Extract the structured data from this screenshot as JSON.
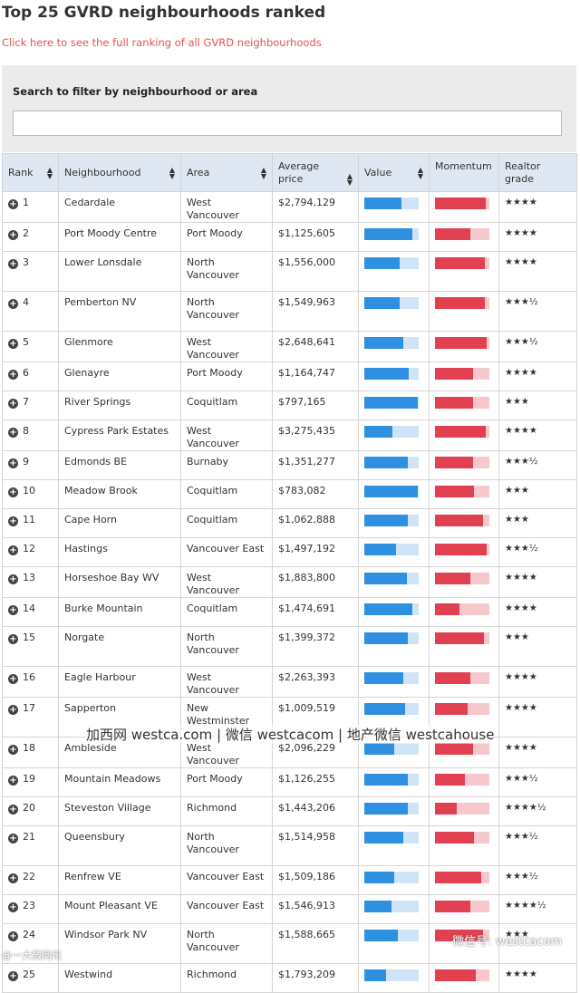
{
  "title": "Top 25 GVRD neighbourhoods ranked",
  "link_text": "Click here to see the full ranking of all GVRD neighbourhoods",
  "filter": {
    "label": "Search to filter by neighbourhood or area",
    "value": ""
  },
  "columns": [
    "Rank",
    "Neighbourhood",
    "Area",
    "Average price",
    "Value",
    "Momentum",
    "Realtor grade"
  ],
  "rows": [
    {
      "rank": "1",
      "name": "Cedardale",
      "area": "West Vancouver",
      "price": "$2,794,129",
      "value": 0.68,
      "momentum": 0.93,
      "grade": "★★★★"
    },
    {
      "rank": "2",
      "name": "Port Moody Centre",
      "area": "Port Moody",
      "price": "$1,125,605",
      "value": 0.88,
      "momentum": 0.65,
      "grade": "★★★★"
    },
    {
      "rank": "3",
      "name": "Lower Lonsdale",
      "area": "North Vancouver",
      "price": "$1,556,000",
      "value": 0.65,
      "momentum": 0.92,
      "grade": "★★★★"
    },
    {
      "rank": "4",
      "name": "Pemberton NV",
      "area": "North Vancouver",
      "price": "$1,549,963",
      "value": 0.65,
      "momentum": 0.92,
      "grade": "★★★½"
    },
    {
      "rank": "5",
      "name": "Glenmore",
      "area": "West Vancouver",
      "price": "$2,648,641",
      "value": 0.72,
      "momentum": 0.95,
      "grade": "★★★½"
    },
    {
      "rank": "6",
      "name": "Glenayre",
      "area": "Port Moody",
      "price": "$1,164,747",
      "value": 0.82,
      "momentum": 0.7,
      "grade": "★★★★"
    },
    {
      "rank": "7",
      "name": "River Springs",
      "area": "Coquitlam",
      "price": "$797,165",
      "value": 0.98,
      "momentum": 0.7,
      "grade": "★★★"
    },
    {
      "rank": "8",
      "name": "Cypress Park Estates",
      "area": "West Vancouver",
      "price": "$3,275,435",
      "value": 0.52,
      "momentum": 0.93,
      "grade": "★★★★"
    },
    {
      "rank": "9",
      "name": "Edmonds BE",
      "area": "Burnaby",
      "price": "$1,351,277",
      "value": 0.8,
      "momentum": 0.7,
      "grade": "★★★½"
    },
    {
      "rank": "10",
      "name": "Meadow Brook",
      "area": "Coquitlam",
      "price": "$783,082",
      "value": 0.98,
      "momentum": 0.72,
      "grade": "★★★"
    },
    {
      "rank": "11",
      "name": "Cape Horn",
      "area": "Coquitlam",
      "price": "$1,062,888",
      "value": 0.8,
      "momentum": 0.88,
      "grade": "★★★"
    },
    {
      "rank": "12",
      "name": "Hastings",
      "area": "Vancouver East",
      "price": "$1,497,192",
      "value": 0.58,
      "momentum": 0.95,
      "grade": "★★★½"
    },
    {
      "rank": "13",
      "name": "Horseshoe Bay WV",
      "area": "West Vancouver",
      "price": "$1,883,800",
      "value": 0.78,
      "momentum": 0.65,
      "grade": "★★★★"
    },
    {
      "rank": "14",
      "name": "Burke Mountain",
      "area": "Coquitlam",
      "price": "$1,474,691",
      "value": 0.88,
      "momentum": 0.45,
      "grade": "★★★★"
    },
    {
      "rank": "15",
      "name": "Norgate",
      "area": "North Vancouver",
      "price": "$1,399,372",
      "value": 0.8,
      "momentum": 0.9,
      "grade": "★★★"
    },
    {
      "rank": "16",
      "name": "Eagle Harbour",
      "area": "West Vancouver",
      "price": "$2,263,393",
      "value": 0.72,
      "momentum": 0.65,
      "grade": "★★★★"
    },
    {
      "rank": "17",
      "name": "Sapperton",
      "area": "New Westminster",
      "price": "$1,009,519",
      "value": 0.75,
      "momentum": 0.6,
      "grade": "★★★★"
    },
    {
      "rank": "18",
      "name": "Ambleside",
      "area": "West Vancouver",
      "price": "$2,096,229",
      "value": 0.55,
      "momentum": 0.7,
      "grade": "★★★★"
    },
    {
      "rank": "19",
      "name": "Mountain Meadows",
      "area": "Port Moody",
      "price": "$1,126,255",
      "value": 0.8,
      "momentum": 0.55,
      "grade": "★★★½"
    },
    {
      "rank": "20",
      "name": "Steveston Village",
      "area": "Richmond",
      "price": "$1,443,206",
      "value": 0.8,
      "momentum": 0.4,
      "grade": "★★★★½"
    },
    {
      "rank": "21",
      "name": "Queensbury",
      "area": "North Vancouver",
      "price": "$1,514,958",
      "value": 0.72,
      "momentum": 0.72,
      "grade": "★★★½"
    },
    {
      "rank": "22",
      "name": "Renfrew VE",
      "area": "Vancouver East",
      "price": "$1,509,186",
      "value": 0.55,
      "momentum": 0.85,
      "grade": "★★★½"
    },
    {
      "rank": "23",
      "name": "Mount Pleasant VE",
      "area": "Vancouver East",
      "price": "$1,546,913",
      "value": 0.5,
      "momentum": 0.65,
      "grade": "★★★★½"
    },
    {
      "rank": "24",
      "name": "Windsor Park NV",
      "area": "North Vancouver",
      "price": "$1,588,665",
      "value": 0.62,
      "momentum": 0.88,
      "grade": "★★★"
    },
    {
      "rank": "25",
      "name": "Westwind",
      "area": "Richmond",
      "price": "$1,793,209",
      "value": 0.4,
      "momentum": 0.75,
      "grade": "★★★★"
    }
  ],
  "watermark": "加西网 westca.com | 微信 westcacom | 地产微信 westcahouse",
  "watermark_corner": "微信号: westcacom",
  "watermark_left": "@一大微网讯",
  "colors": {
    "value_bar": "#2f8fe0",
    "value_track": "#cfe5f7",
    "momentum_bar": "#e04050",
    "momentum_track": "#f6c8cc",
    "header_bg": "#dfe8f2",
    "link": "#e0554f"
  }
}
